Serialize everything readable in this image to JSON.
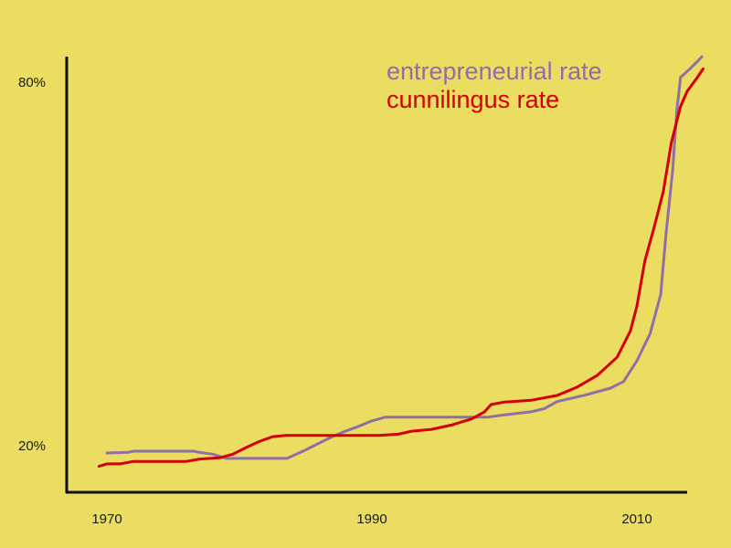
{
  "colors": {
    "background": "#ebdd62",
    "axis": "#111111",
    "entrepreneurial": "#8e6fa6",
    "cunnilingus": "#d40000"
  },
  "chart_data": {
    "type": "line",
    "title": "",
    "xlabel": "",
    "ylabel": "",
    "xlim": [
      1967,
      2014
    ],
    "ylim": [
      17,
      86
    ],
    "grid": false,
    "legend_position": "top-right",
    "x_ticks": [
      {
        "value": 1970,
        "label": "1970"
      },
      {
        "value": 1990,
        "label": "1990"
      },
      {
        "value": 2010,
        "label": "2010"
      }
    ],
    "y_ticks": [
      {
        "value": 20,
        "label": "20%"
      },
      {
        "value": 80,
        "label": "80%"
      }
    ],
    "series": [
      {
        "name": "entrepreneurial rate",
        "color": "#8e6fa6",
        "points": [
          [
            1970.0,
            18.8
          ],
          [
            1971.6,
            18.9
          ],
          [
            1972.0,
            19.1
          ],
          [
            1976.5,
            19.1
          ],
          [
            1977.0,
            18.9
          ],
          [
            1978.0,
            18.6
          ],
          [
            1979.0,
            17.9
          ],
          [
            1983.6,
            17.9
          ],
          [
            1984.0,
            18.3
          ],
          [
            1985.0,
            19.3
          ],
          [
            1986.0,
            20.4
          ],
          [
            1987.0,
            21.5
          ],
          [
            1988.0,
            22.4
          ],
          [
            1989.0,
            23.2
          ],
          [
            1990.0,
            24.1
          ],
          [
            1991.0,
            24.7
          ],
          [
            1996.0,
            24.7
          ],
          [
            1998.7,
            24.7
          ],
          [
            2000.0,
            25.1
          ],
          [
            2002.0,
            25.6
          ],
          [
            2003.0,
            26.1
          ],
          [
            2004.0,
            27.3
          ],
          [
            2006.0,
            28.3
          ],
          [
            2008.0,
            29.5
          ],
          [
            2009.0,
            30.6
          ],
          [
            2010.0,
            34.0
          ],
          [
            2011.0,
            38.5
          ],
          [
            2011.8,
            45.0
          ],
          [
            2012.2,
            55.0
          ],
          [
            2012.7,
            65.5
          ],
          [
            2013.0,
            75.0
          ],
          [
            2013.3,
            80.8
          ],
          [
            2014.0,
            82.2
          ],
          [
            2014.6,
            83.5
          ],
          [
            2014.9,
            84.2
          ]
        ]
      },
      {
        "name": "cunnilingus rate",
        "color": "#d40000",
        "points": [
          [
            1969.4,
            16.6
          ],
          [
            1970.0,
            17.0
          ],
          [
            1971.0,
            17.0
          ],
          [
            1972.0,
            17.4
          ],
          [
            1976.0,
            17.4
          ],
          [
            1977.0,
            17.8
          ],
          [
            1978.5,
            18.0
          ],
          [
            1979.5,
            18.6
          ],
          [
            1980.5,
            19.7
          ],
          [
            1981.5,
            20.7
          ],
          [
            1982.5,
            21.5
          ],
          [
            1983.5,
            21.7
          ],
          [
            1990.5,
            21.7
          ],
          [
            1992.0,
            21.9
          ],
          [
            1993.0,
            22.4
          ],
          [
            1994.5,
            22.7
          ],
          [
            1996.0,
            23.4
          ],
          [
            1997.5,
            24.4
          ],
          [
            1998.5,
            25.6
          ],
          [
            1999.0,
            26.8
          ],
          [
            2000.0,
            27.2
          ],
          [
            2002.0,
            27.5
          ],
          [
            2004.0,
            28.3
          ],
          [
            2005.5,
            29.7
          ],
          [
            2007.0,
            31.6
          ],
          [
            2008.5,
            34.6
          ],
          [
            2009.5,
            38.9
          ],
          [
            2010.0,
            43.0
          ],
          [
            2010.6,
            50.5
          ],
          [
            2011.3,
            56.0
          ],
          [
            2012.0,
            62.0
          ],
          [
            2012.6,
            70.0
          ],
          [
            2013.3,
            76.0
          ],
          [
            2013.8,
            78.5
          ],
          [
            2014.5,
            80.6
          ],
          [
            2015.0,
            82.2
          ]
        ]
      }
    ]
  }
}
